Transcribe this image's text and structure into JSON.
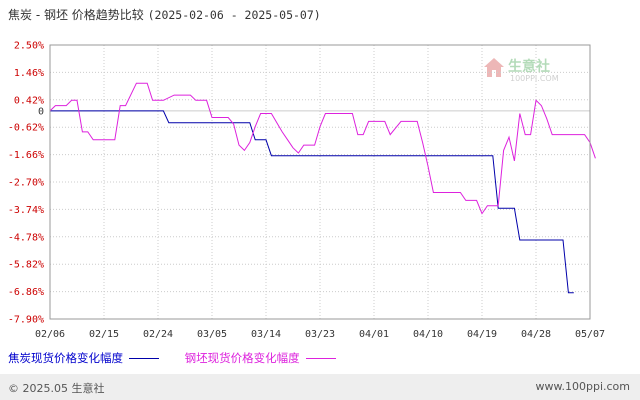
{
  "header": {
    "title": "焦炭 - 钢坯 价格趋势比较",
    "date_range": "(2025-02-06 - 2025-05-07)"
  },
  "watermark": {
    "name": "生意社",
    "domain": "100PPI.COM"
  },
  "footer": {
    "copyright": "© 2025.05 生意社",
    "website": "www.100ppi.com"
  },
  "colors": {
    "series1": "#0000aa",
    "series2": "#dd22dd",
    "positive_tick": "#cc0000",
    "negative_tick": "#cc0000",
    "zero_tick": "#333333",
    "grid": "#cccccc"
  },
  "chart_data": {
    "type": "line",
    "title": "焦炭 - 钢坯 价格趋势比较",
    "xlabel": "",
    "ylabel": "",
    "ylim": [
      -7.9,
      2.5
    ],
    "grid": true,
    "legend_position": "bottom-left",
    "yticks": [
      "2.50%",
      "1.46%",
      "0.42%",
      "0",
      "-0.62%",
      "-1.66%",
      "-2.70%",
      "-3.74%",
      "-4.78%",
      "-5.82%",
      "-6.86%",
      "-7.90%"
    ],
    "ytick_values": [
      2.5,
      1.46,
      0.42,
      0,
      -0.62,
      -1.66,
      -2.7,
      -3.74,
      -4.78,
      -5.82,
      -6.86,
      -7.9
    ],
    "xticks": [
      "02/06",
      "02/15",
      "02/24",
      "03/05",
      "03/14",
      "03/23",
      "04/01",
      "04/10",
      "04/19",
      "04/28",
      "05/07"
    ],
    "series": [
      {
        "name": "焦炭现货价格变化幅度",
        "points": [
          [
            0,
            0
          ],
          [
            21,
            0
          ],
          [
            22,
            -0.45
          ],
          [
            37,
            -0.45
          ],
          [
            38,
            -1.1
          ],
          [
            39,
            -1.1
          ],
          [
            40,
            -1.1
          ],
          [
            41,
            -1.7
          ],
          [
            82,
            -1.7
          ],
          [
            83,
            -3.7
          ],
          [
            86,
            -3.7
          ],
          [
            87,
            -4.9
          ],
          [
            95,
            -4.9
          ],
          [
            96,
            -6.9
          ],
          [
            97,
            -6.9
          ]
        ]
      },
      {
        "name": "钢坯现货价格变化幅度",
        "points": [
          [
            0,
            0
          ],
          [
            1,
            0.2
          ],
          [
            3,
            0.2
          ],
          [
            4,
            0.4
          ],
          [
            5,
            0.4
          ],
          [
            6,
            -0.8
          ],
          [
            7,
            -0.8
          ],
          [
            8,
            -1.1
          ],
          [
            12,
            -1.1
          ],
          [
            13,
            0.2
          ],
          [
            14,
            0.2
          ],
          [
            16,
            1.05
          ],
          [
            18,
            1.05
          ],
          [
            19,
            0.4
          ],
          [
            21,
            0.4
          ],
          [
            23,
            0.6
          ],
          [
            26,
            0.6
          ],
          [
            27,
            0.4
          ],
          [
            29,
            0.4
          ],
          [
            30,
            -0.25
          ],
          [
            33,
            -0.25
          ],
          [
            34,
            -0.5
          ],
          [
            35,
            -1.3
          ],
          [
            36,
            -1.5
          ],
          [
            37,
            -1.2
          ],
          [
            38,
            -0.6
          ],
          [
            39,
            -0.1
          ],
          [
            41,
            -0.1
          ],
          [
            43,
            -0.8
          ],
          [
            44,
            -1.1
          ],
          [
            45,
            -1.4
          ],
          [
            46,
            -1.6
          ],
          [
            47,
            -1.3
          ],
          [
            49,
            -1.3
          ],
          [
            50,
            -0.6
          ],
          [
            51,
            -0.1
          ],
          [
            56,
            -0.1
          ],
          [
            57,
            -0.9
          ],
          [
            58,
            -0.9
          ],
          [
            59,
            -0.4
          ],
          [
            62,
            -0.4
          ],
          [
            63,
            -0.9
          ],
          [
            65,
            -0.4
          ],
          [
            68,
            -0.4
          ],
          [
            69,
            -1.2
          ],
          [
            70,
            -2.1
          ],
          [
            71,
            -3.1
          ],
          [
            76,
            -3.1
          ],
          [
            77,
            -3.4
          ],
          [
            79,
            -3.4
          ],
          [
            80,
            -3.9
          ],
          [
            81,
            -3.6
          ],
          [
            83,
            -3.6
          ],
          [
            84,
            -1.5
          ],
          [
            85,
            -1.0
          ],
          [
            86,
            -1.9
          ],
          [
            87,
            -0.1
          ],
          [
            88,
            -0.9
          ],
          [
            89,
            -0.9
          ],
          [
            90,
            0.4
          ],
          [
            91,
            0.2
          ],
          [
            92,
            -0.3
          ],
          [
            93,
            -0.9
          ],
          [
            99,
            -0.9
          ],
          [
            100,
            -1.2
          ],
          [
            101,
            -1.8
          ]
        ]
      }
    ]
  }
}
